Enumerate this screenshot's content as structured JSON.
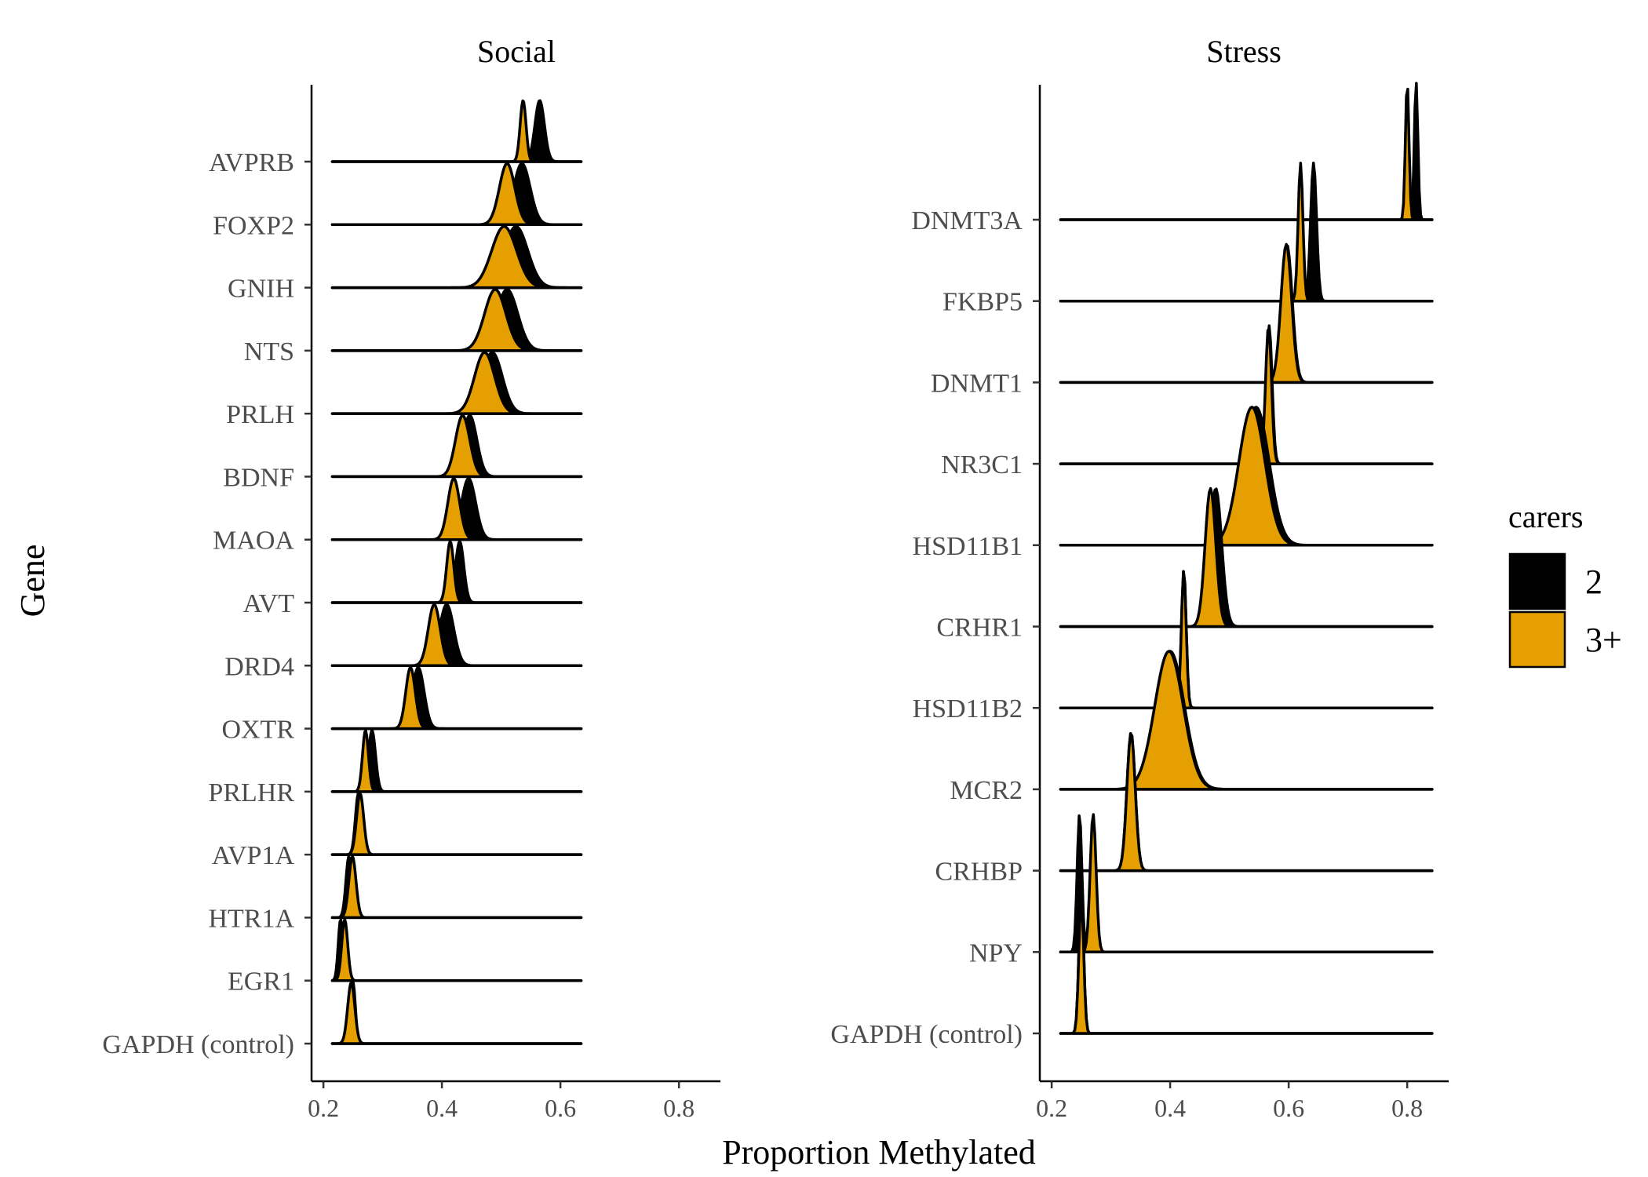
{
  "chart_data": {
    "type": "ridgeline",
    "xlabel": "Proportion Methylated",
    "ylabel": "Gene",
    "legend": {
      "title": "carers",
      "placement": "right",
      "entries": [
        {
          "label": "2",
          "color": "#000000"
        },
        {
          "label": "3+",
          "color": "#E69F00"
        }
      ]
    },
    "panels": [
      {
        "title": "Social",
        "xlim": [
          0.18,
          0.87
        ],
        "xticks": [
          "0.2",
          "0.4",
          "0.6",
          "0.8"
        ],
        "tick_values": [
          0.2,
          0.4,
          0.6,
          0.8
        ],
        "baseline_range": [
          0.215,
          0.635
        ],
        "genes": [
          {
            "name": "AVPRB",
            "series": {
              "2": {
                "mean": 0.565,
                "sd": 0.008
              },
              "3+": {
                "mean": 0.537,
                "sd": 0.005
              }
            }
          },
          {
            "name": "FOXP2",
            "series": {
              "2": {
                "mean": 0.535,
                "sd": 0.014
              },
              "3+": {
                "mean": 0.51,
                "sd": 0.013
              }
            }
          },
          {
            "name": "GNIH",
            "series": {
              "2": {
                "mean": 0.525,
                "sd": 0.02
              },
              "3+": {
                "mean": 0.505,
                "sd": 0.021
              }
            }
          },
          {
            "name": "NTS",
            "series": {
              "2": {
                "mean": 0.51,
                "sd": 0.018
              },
              "3+": {
                "mean": 0.49,
                "sd": 0.018
              }
            }
          },
          {
            "name": "PRLH",
            "series": {
              "2": {
                "mean": 0.485,
                "sd": 0.017
              },
              "3+": {
                "mean": 0.472,
                "sd": 0.017
              }
            }
          },
          {
            "name": "BDNF",
            "series": {
              "2": {
                "mean": 0.447,
                "sd": 0.012
              },
              "3+": {
                "mean": 0.435,
                "sd": 0.012
              }
            }
          },
          {
            "name": "MAOA",
            "series": {
              "2": {
                "mean": 0.445,
                "sd": 0.012
              },
              "3+": {
                "mean": 0.42,
                "sd": 0.01
              }
            }
          },
          {
            "name": "AVT",
            "series": {
              "2": {
                "mean": 0.43,
                "sd": 0.007
              },
              "3+": {
                "mean": 0.414,
                "sd": 0.006
              }
            }
          },
          {
            "name": "DRD4",
            "series": {
              "2": {
                "mean": 0.408,
                "sd": 0.012
              },
              "3+": {
                "mean": 0.387,
                "sd": 0.01
              }
            }
          },
          {
            "name": "OXTR",
            "series": {
              "2": {
                "mean": 0.36,
                "sd": 0.01
              },
              "3+": {
                "mean": 0.347,
                "sd": 0.008
              }
            }
          },
          {
            "name": "PRLHR",
            "series": {
              "2": {
                "mean": 0.282,
                "sd": 0.006
              },
              "3+": {
                "mean": 0.271,
                "sd": 0.005
              }
            }
          },
          {
            "name": "AVP1A",
            "series": {
              "2": {
                "mean": 0.259,
                "sd": 0.005
              },
              "3+": {
                "mean": 0.262,
                "sd": 0.006
              }
            }
          },
          {
            "name": "HTR1A",
            "series": {
              "2": {
                "mean": 0.243,
                "sd": 0.005
              },
              "3+": {
                "mean": 0.249,
                "sd": 0.006
              }
            }
          },
          {
            "name": "EGR1",
            "series": {
              "2": {
                "mean": 0.229,
                "sd": 0.004
              },
              "3+": {
                "mean": 0.236,
                "sd": 0.005
              }
            }
          },
          {
            "name": "GAPDH (control)",
            "series": {
              "2": {
                "mean": 0.25,
                "sd": 0.004
              },
              "3+": {
                "mean": 0.247,
                "sd": 0.006
              }
            }
          }
        ]
      },
      {
        "title": "Stress",
        "xlim": [
          0.18,
          0.87
        ],
        "xticks": [
          "0.2",
          "0.4",
          "0.6",
          "0.8"
        ],
        "tick_values": [
          0.2,
          0.4,
          0.6,
          0.8
        ],
        "baseline_range": [
          0.215,
          0.842
        ],
        "genes": [
          {
            "name": "DNMT3A",
            "series": {
              "2": {
                "mean": 0.815,
                "sd": 0.003
              },
              "3+": {
                "mean": 0.8,
                "sd": 0.003
              }
            }
          },
          {
            "name": "FKBP5",
            "series": {
              "2": {
                "mean": 0.642,
                "sd": 0.005
              },
              "3+": {
                "mean": 0.62,
                "sd": 0.004
              }
            }
          },
          {
            "name": "DNMT1",
            "series": {
              "2": {
                "mean": 0.597,
                "sd": 0.009
              },
              "3+": {
                "mean": 0.596,
                "sd": 0.009
              }
            }
          },
          {
            "name": "NR3C1",
            "series": {
              "2": {
                "mean": 0.567,
                "sd": 0.005
              },
              "3+": {
                "mean": 0.566,
                "sd": 0.005
              }
            }
          },
          {
            "name": "HSD11B1",
            "series": {
              "2": {
                "mean": 0.545,
                "sd": 0.022
              },
              "3+": {
                "mean": 0.538,
                "sd": 0.022
              }
            }
          },
          {
            "name": "CRHR1",
            "series": {
              "2": {
                "mean": 0.477,
                "sd": 0.01
              },
              "3+": {
                "mean": 0.468,
                "sd": 0.009
              }
            }
          },
          {
            "name": "HSD11B2",
            "series": {
              "2": {
                "mean": 0.423,
                "sd": 0.004
              },
              "3+": {
                "mean": 0.423,
                "sd": 0.004
              }
            }
          },
          {
            "name": "MCR2",
            "series": {
              "2": {
                "mean": 0.4,
                "sd": 0.024
              },
              "3+": {
                "mean": 0.398,
                "sd": 0.024
              }
            }
          },
          {
            "name": "CRHBP",
            "series": {
              "2": {
                "mean": 0.334,
                "sd": 0.007
              },
              "3+": {
                "mean": 0.334,
                "sd": 0.007
              }
            }
          },
          {
            "name": "NPY",
            "series": {
              "2": {
                "mean": 0.247,
                "sd": 0.004
              },
              "3+": {
                "mean": 0.27,
                "sd": 0.005
              }
            }
          },
          {
            "name": "GAPDH (control)",
            "series": {
              "2": {
                "mean": 0.25,
                "sd": 0.004
              },
              "3+": {
                "mean": 0.25,
                "sd": 0.004
              }
            }
          }
        ]
      }
    ]
  }
}
